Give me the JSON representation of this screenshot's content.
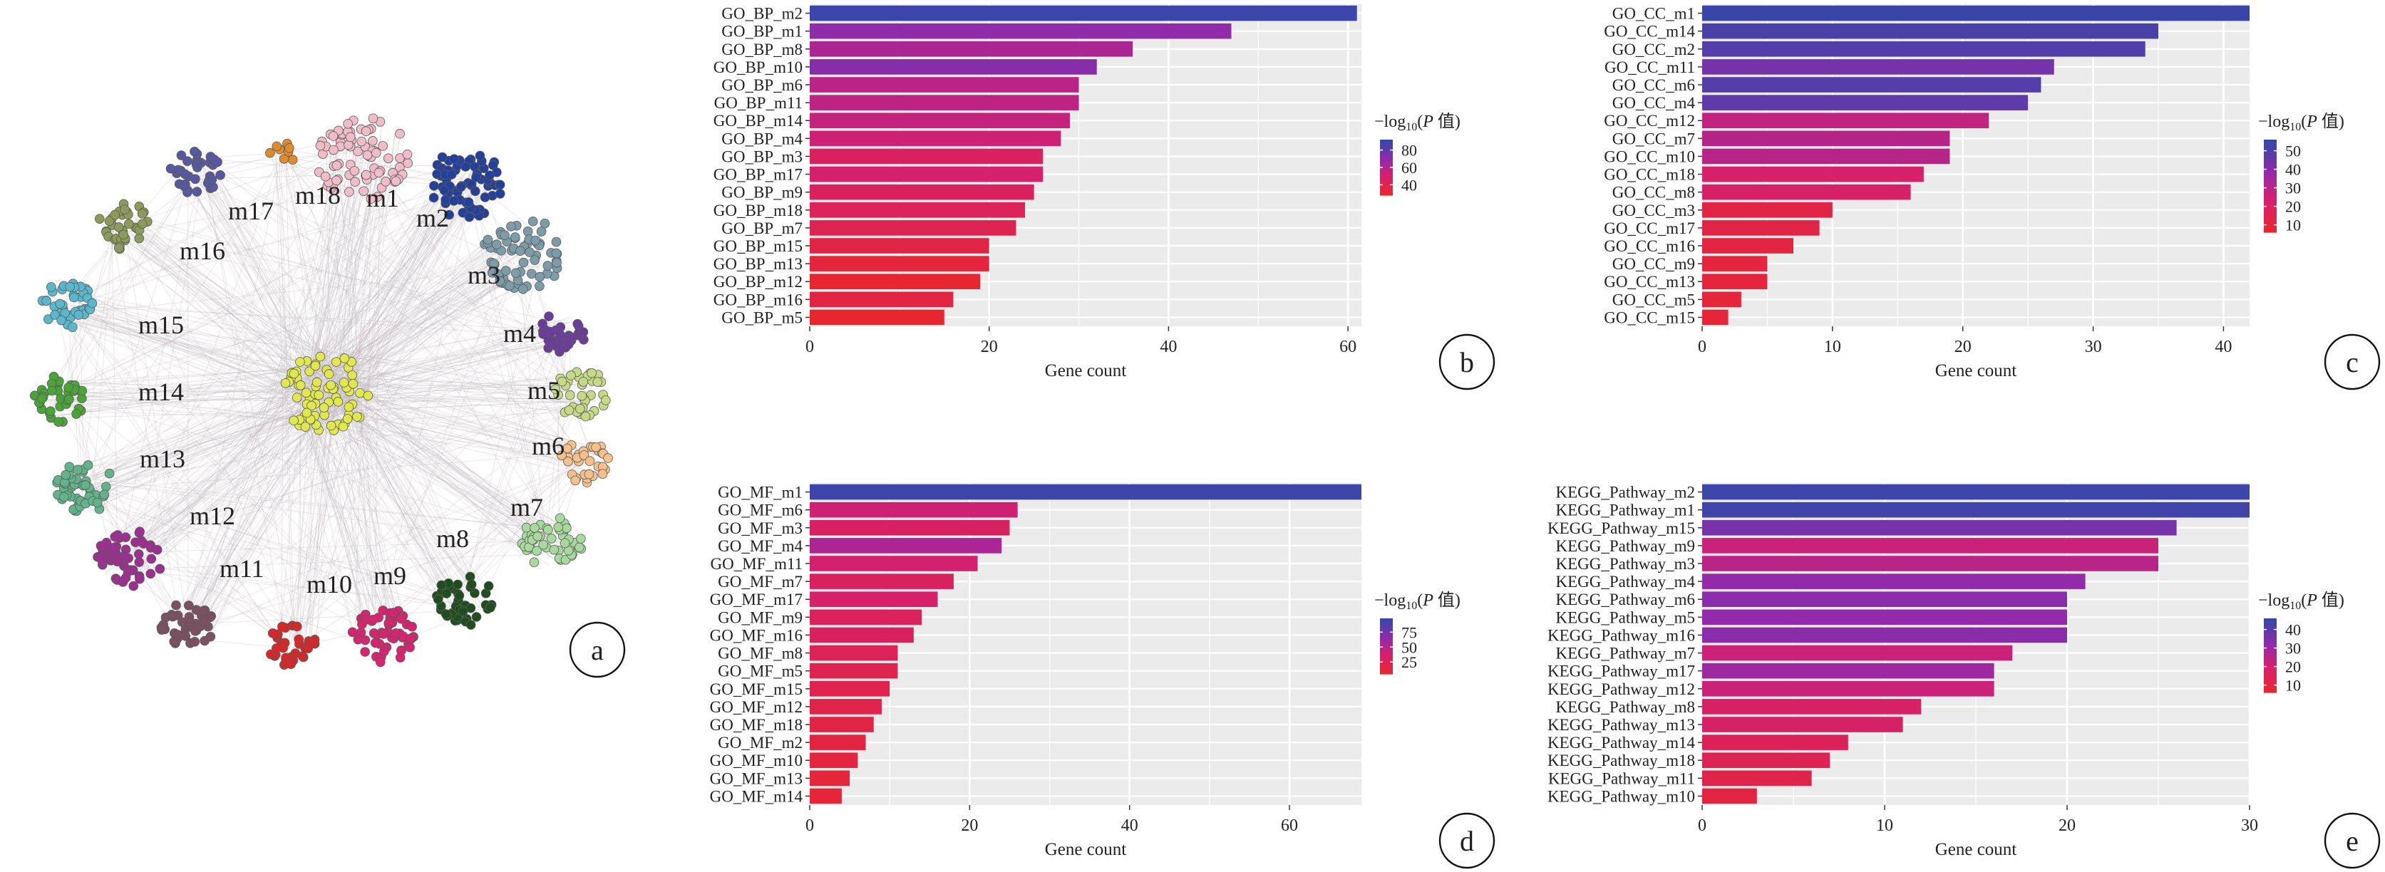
{
  "network": {
    "panel_label": "a",
    "modules": [
      {
        "label": "m1",
        "color": "#f0bcc8"
      },
      {
        "label": "m2",
        "color": "#23409a"
      },
      {
        "label": "m3",
        "color": "#7c9ca8"
      },
      {
        "label": "m4",
        "color": "#6a3d9a"
      },
      {
        "label": "m5",
        "color": "#c5d987"
      },
      {
        "label": "m6",
        "color": "#f5c08a"
      },
      {
        "label": "m7",
        "color": "#a6d99b"
      },
      {
        "label": "m8",
        "color": "#1e4d1e"
      },
      {
        "label": "m9",
        "color": "#d8246f"
      },
      {
        "label": "m10",
        "color": "#d62828"
      },
      {
        "label": "m11",
        "color": "#7b5061"
      },
      {
        "label": "m12",
        "color": "#9c2f8f"
      },
      {
        "label": "m13",
        "color": "#62b38c"
      },
      {
        "label": "m14",
        "color": "#48a536"
      },
      {
        "label": "m15",
        "color": "#5bb8cc"
      },
      {
        "label": "m16",
        "color": "#8c9a5a"
      },
      {
        "label": "m17",
        "color": "#5858a0"
      },
      {
        "label": "m18",
        "color": "#e08a2c"
      }
    ],
    "hub_color": "#e1e84d",
    "edge_color": "#c4b9c0"
  },
  "chart_data": [
    {
      "id": "b",
      "type": "bar",
      "panel_label": "b",
      "orientation": "horizontal",
      "categories": [
        "GO_BP_m2",
        "GO_BP_m1",
        "GO_BP_m8",
        "GO_BP_m10",
        "GO_BP_m6",
        "GO_BP_m11",
        "GO_BP_m14",
        "GO_BP_m4",
        "GO_BP_m3",
        "GO_BP_m17",
        "GO_BP_m9",
        "GO_BP_m18",
        "GO_BP_m7",
        "GO_BP_m15",
        "GO_BP_m13",
        "GO_BP_m12",
        "GO_BP_m16",
        "GO_BP_m5"
      ],
      "values": [
        61,
        47,
        36,
        32,
        30,
        30,
        29,
        28,
        26,
        26,
        25,
        24,
        23,
        20,
        20,
        19,
        16,
        15
      ],
      "color_values": [
        90,
        70,
        62,
        72,
        58,
        57,
        55,
        52,
        45,
        50,
        45,
        42,
        40,
        36,
        32,
        25,
        35,
        28
      ],
      "xlabel": "Gene count",
      "xticks": [
        0,
        20,
        40,
        60
      ],
      "xlim": [
        0,
        61.5
      ],
      "legend": {
        "title_prefix": "−log",
        "title_sub": "10",
        "title_suffix": "(",
        "title_italic": "P",
        "title_end": " 值)",
        "ticks": [
          80,
          60,
          40
        ],
        "range": [
          28,
          92
        ]
      }
    },
    {
      "id": "c",
      "type": "bar",
      "panel_label": "c",
      "orientation": "horizontal",
      "categories": [
        "GO_CC_m1",
        "GO_CC_m14",
        "GO_CC_m2",
        "GO_CC_m11",
        "GO_CC_m6",
        "GO_CC_m4",
        "GO_CC_m12",
        "GO_CC_m7",
        "GO_CC_m10",
        "GO_CC_m18",
        "GO_CC_m8",
        "GO_CC_m3",
        "GO_CC_m17",
        "GO_CC_m16",
        "GO_CC_m9",
        "GO_CC_m13",
        "GO_CC_m5",
        "GO_CC_m15"
      ],
      "values": [
        42,
        35,
        34,
        27,
        26,
        25,
        22,
        19,
        19,
        17,
        16,
        10,
        9,
        7,
        5,
        5,
        3,
        2
      ],
      "color_values": [
        55,
        52,
        50,
        44,
        50,
        48,
        28,
        30,
        30,
        22,
        22,
        12,
        12,
        11,
        10,
        9,
        9,
        8
      ],
      "xlabel": "Gene count",
      "xticks": [
        0,
        10,
        20,
        30,
        40
      ],
      "xlim": [
        0,
        42
      ],
      "legend": {
        "title_prefix": "−log",
        "title_sub": "10",
        "title_suffix": "(",
        "title_italic": "P",
        "title_end": " 值)",
        "ticks": [
          50,
          40,
          30,
          20,
          10
        ],
        "range": [
          6,
          56
        ]
      }
    },
    {
      "id": "d",
      "type": "bar",
      "panel_label": "d",
      "orientation": "horizontal",
      "categories": [
        "GO_MF_m1",
        "GO_MF_m6",
        "GO_MF_m3",
        "GO_MF_m4",
        "GO_MF_m11",
        "GO_MF_m7",
        "GO_MF_m17",
        "GO_MF_m9",
        "GO_MF_m16",
        "GO_MF_m8",
        "GO_MF_m5",
        "GO_MF_m15",
        "GO_MF_m12",
        "GO_MF_m18",
        "GO_MF_m2",
        "GO_MF_m10",
        "GO_MF_m13",
        "GO_MF_m14"
      ],
      "values": [
        69,
        26,
        25,
        24,
        21,
        18,
        16,
        14,
        13,
        11,
        11,
        10,
        9,
        8,
        7,
        6,
        5,
        4
      ],
      "color_values": [
        95,
        40,
        32,
        55,
        38,
        30,
        35,
        28,
        30,
        25,
        22,
        20,
        18,
        16,
        14,
        12,
        10,
        9
      ],
      "xlabel": "Gene count",
      "xticks": [
        0,
        20,
        40,
        60
      ],
      "xlim": [
        0,
        69
      ],
      "legend": {
        "title_prefix": "−log",
        "title_sub": "10",
        "title_suffix": "(",
        "title_italic": "P",
        "title_end": " 值)",
        "ticks": [
          75,
          50,
          25
        ],
        "range": [
          5,
          98
        ]
      }
    },
    {
      "id": "e",
      "type": "bar",
      "panel_label": "e",
      "orientation": "horizontal",
      "categories": [
        "KEGG_Pathway_m2",
        "KEGG_Pathway_m1",
        "KEGG_Pathway_m15",
        "KEGG_Pathway_m9",
        "KEGG_Pathway_m3",
        "KEGG_Pathway_m4",
        "KEGG_Pathway_m6",
        "KEGG_Pathway_m5",
        "KEGG_Pathway_m16",
        "KEGG_Pathway_m7",
        "KEGG_Pathway_m17",
        "KEGG_Pathway_m12",
        "KEGG_Pathway_m8",
        "KEGG_Pathway_m13",
        "KEGG_Pathway_m14",
        "KEGG_Pathway_m18",
        "KEGG_Pathway_m11",
        "KEGG_Pathway_m10"
      ],
      "values": [
        30,
        30,
        26,
        25,
        25,
        21,
        20,
        20,
        20,
        17,
        16,
        16,
        12,
        11,
        8,
        7,
        6,
        3
      ],
      "color_values": [
        45,
        44,
        36,
        22,
        25,
        32,
        33,
        32,
        33,
        22,
        30,
        22,
        18,
        18,
        15,
        14,
        12,
        10
      ],
      "xlabel": "Gene count",
      "xticks": [
        0,
        10,
        20,
        30
      ],
      "xlim": [
        0,
        30
      ],
      "legend": {
        "title_prefix": "−log",
        "title_sub": "10",
        "title_suffix": "(",
        "title_italic": "P",
        "title_end": " 值)",
        "ticks": [
          40,
          30,
          20,
          10
        ],
        "range": [
          6,
          46
        ]
      }
    }
  ]
}
